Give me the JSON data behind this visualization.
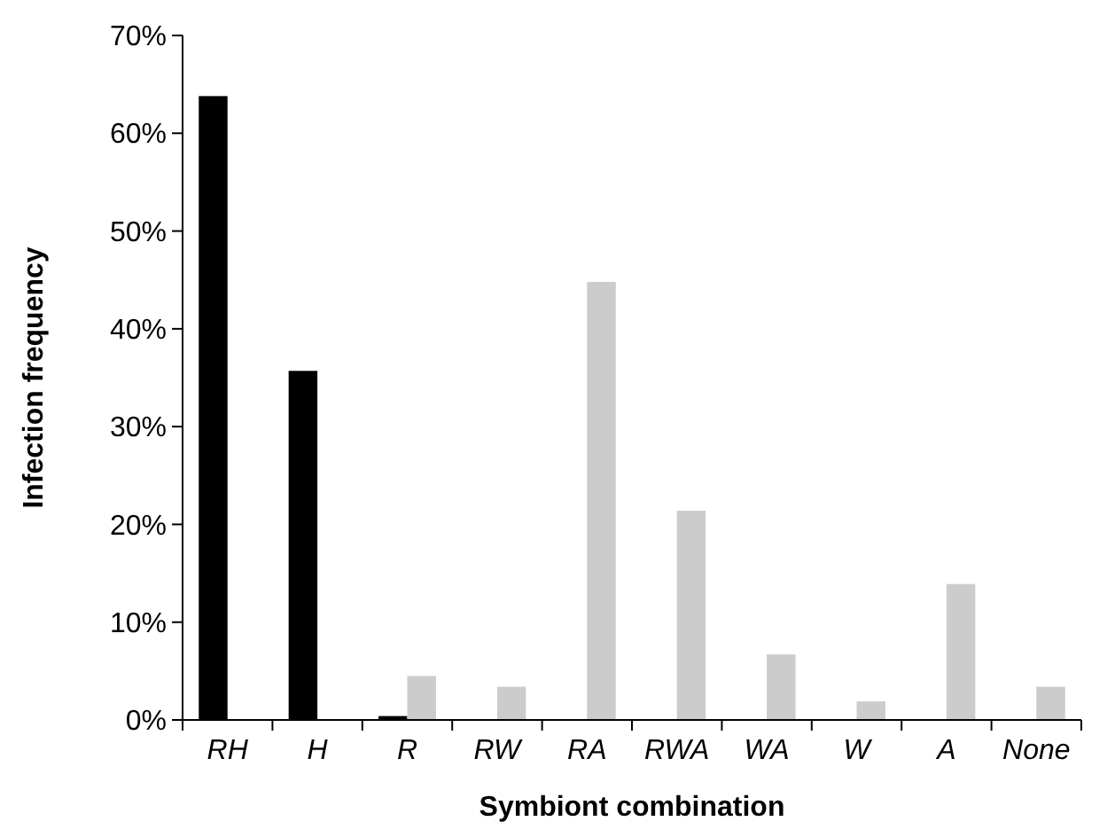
{
  "chart_data": {
    "type": "bar",
    "xlabel": "Symbiont combination",
    "ylabel": "Infection frequency",
    "categories": [
      "RH",
      "H",
      "R",
      "RW",
      "RA",
      "RWA",
      "WA",
      "W",
      "A",
      "None"
    ],
    "series": [
      {
        "color": "#000000",
        "values": [
          63.8,
          35.7,
          0.4,
          null,
          null,
          null,
          null,
          null,
          null,
          null
        ]
      },
      {
        "color": "#cccccc",
        "values": [
          null,
          null,
          4.5,
          3.4,
          44.8,
          21.4,
          6.7,
          1.9,
          13.9,
          3.4
        ]
      }
    ],
    "ylim": [
      0,
      70
    ],
    "yticks": [
      {
        "value": 0,
        "label": "0%"
      },
      {
        "value": 10,
        "label": "10%"
      },
      {
        "value": 20,
        "label": "20%"
      },
      {
        "value": 30,
        "label": "30%"
      },
      {
        "value": 40,
        "label": "40%"
      },
      {
        "value": 50,
        "label": "50%"
      },
      {
        "value": 60,
        "label": "60%"
      },
      {
        "value": 70,
        "label": "70%"
      }
    ],
    "grid": false
  }
}
